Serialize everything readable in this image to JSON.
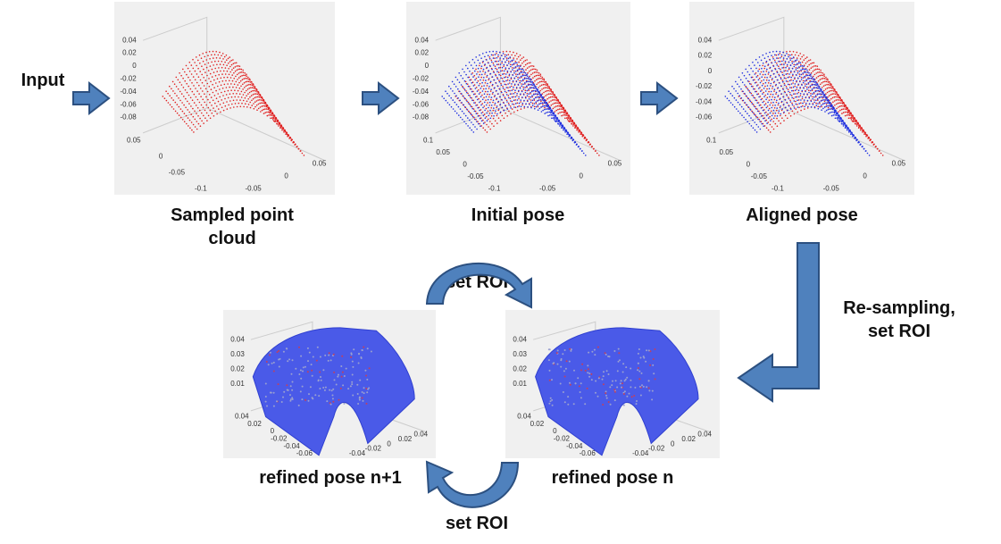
{
  "input_label": "Input",
  "nodes": [
    {
      "label": [
        "Sampled point",
        "cloud"
      ],
      "zticks": [
        "0.04",
        "0.02",
        "0",
        "-0.02",
        "-0.04",
        "-0.06",
        "-0.08"
      ],
      "lticks": [
        "0.05",
        "0",
        "-0.05",
        "-0.1"
      ],
      "rticks": [
        "0.05",
        "0",
        "-0.05"
      ]
    },
    {
      "label": [
        "Initial pose"
      ],
      "zticks": [
        "0.04",
        "0.02",
        "0",
        "-0.02",
        "-0.04",
        "-0.06",
        "-0.08"
      ],
      "lticks": [
        "0.1",
        "0.05",
        "0",
        "-0.05",
        "-0.1"
      ],
      "rticks": [
        "0.05",
        "0",
        "-0.05"
      ]
    },
    {
      "label": [
        "Aligned pose"
      ],
      "zticks": [
        "0.04",
        "0.02",
        "0",
        "-0.02",
        "-0.04",
        "-0.06"
      ],
      "lticks": [
        "0.1",
        "0.05",
        "0",
        "-0.05",
        "-0.1"
      ],
      "rticks": [
        "0.05",
        "0",
        "-0.05"
      ]
    },
    {
      "label": [
        "refined pose n+1"
      ],
      "zticks": [
        "0.04",
        "0.03",
        "0.02",
        "0.01"
      ],
      "lticks": [
        "0.04",
        "0.02",
        "0",
        "-0.02",
        "-0.04",
        "-0.06"
      ],
      "rticks": [
        "0.04",
        "0.02",
        "0",
        "-0.02",
        "-0.04"
      ]
    },
    {
      "label": [
        "refined pose n"
      ],
      "zticks": [
        "0.04",
        "0.03",
        "0.02",
        "0.01"
      ],
      "lticks": [
        "0.04",
        "0.02",
        "0",
        "-0.02",
        "-0.04",
        "-0.06"
      ],
      "rticks": [
        "0.04",
        "0.02",
        "0",
        "-0.02",
        "-0.04"
      ]
    }
  ],
  "edges": [
    {
      "label": [
        "Re-sampling,",
        "set ROI"
      ]
    },
    {
      "label": [
        "set ROI"
      ]
    },
    {
      "label": [
        "set ROI"
      ]
    }
  ]
}
